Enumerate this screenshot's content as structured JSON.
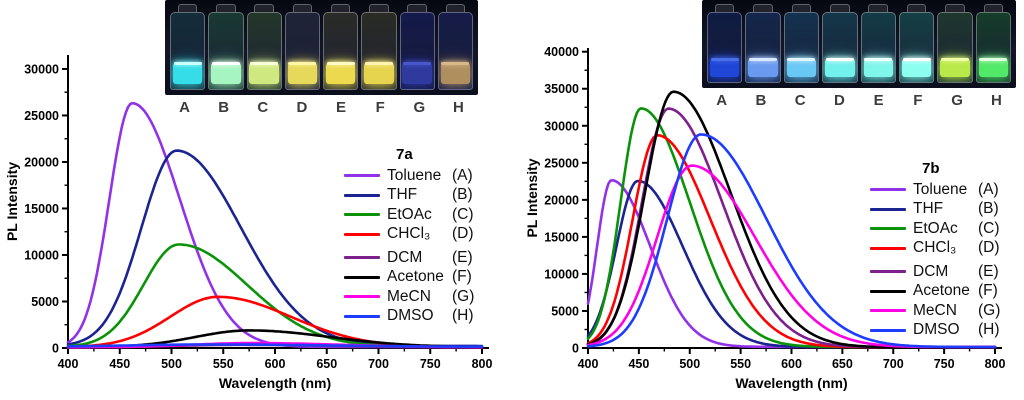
{
  "chart_data": [
    {
      "id": "7a",
      "type": "line",
      "title": "7a",
      "xlabel": "Wavelength (nm)",
      "ylabel": "PL Intensity",
      "xlim": [
        400,
        800
      ],
      "ylim": [
        0,
        31500
      ],
      "xtick_step": 50,
      "xtick_minor_step": 25,
      "ytick_step": 5000,
      "ytick_minor_step": 2500,
      "ytick_max": 30000,
      "grid": false,
      "legend_position": "inside-right",
      "series": [
        {
          "name": "Toluene",
          "letter": "(A)",
          "color": "#9232E8",
          "peak_nm": 462,
          "peak_intensity": 26200,
          "sigma_left": 22,
          "sigma_right": 46,
          "baseline": 120
        },
        {
          "name": "THF",
          "letter": "(B)",
          "color": "#1B2490",
          "peak_nm": 505,
          "peak_intensity": 21000,
          "sigma_left": 34,
          "sigma_right": 62,
          "baseline": 220
        },
        {
          "name": "EtOAc",
          "letter": "(C)",
          "color": "#0A9308",
          "peak_nm": 507,
          "peak_intensity": 11000,
          "sigma_left": 34,
          "sigma_right": 66,
          "baseline": 130
        },
        {
          "name": "CHCl₃",
          "letter": "(D)",
          "color": "#FF0000",
          "peak_nm": 545,
          "peak_intensity": 5400,
          "sigma_left": 46,
          "sigma_right": 70,
          "baseline": 100
        },
        {
          "name": "DCM",
          "letter": "(E)",
          "color": "#7D1F8D",
          "peak_nm": 565,
          "peak_intensity": 280,
          "sigma_left": 60,
          "sigma_right": 85,
          "baseline": 60
        },
        {
          "name": "Acetone",
          "letter": "(F)",
          "color": "#000000",
          "peak_nm": 575,
          "peak_intensity": 1800,
          "sigma_left": 52,
          "sigma_right": 78,
          "baseline": 90
        },
        {
          "name": "MeCN",
          "letter": "(G)",
          "color": "#FF00E6",
          "peak_nm": 578,
          "peak_intensity": 450,
          "sigma_left": 58,
          "sigma_right": 85,
          "baseline": 80
        },
        {
          "name": "DMSO",
          "letter": "(H)",
          "color": "#1E3CFF",
          "peak_nm": 540,
          "peak_intensity": 260,
          "sigma_left": 80,
          "sigma_right": 110,
          "baseline": 120
        }
      ]
    },
    {
      "id": "7b",
      "type": "line",
      "title": "7b",
      "xlabel": "Wavelength (nm)",
      "ylabel": "PL Intensity",
      "xlim": [
        400,
        800
      ],
      "ylim": [
        0,
        40500
      ],
      "xtick_step": 50,
      "xtick_minor_step": 25,
      "ytick_step": 5000,
      "ytick_minor_step": 2500,
      "ytick_max": 40000,
      "grid": false,
      "legend_position": "inside-right",
      "series": [
        {
          "name": "Toluene",
          "letter": "(A)",
          "color": "#9232E8",
          "peak_nm": 423,
          "peak_intensity": 22500,
          "sigma_left": 14,
          "sigma_right": 38,
          "baseline": 150
        },
        {
          "name": "THF",
          "letter": "(B)",
          "color": "#1B2490",
          "peak_nm": 449,
          "peak_intensity": 22400,
          "sigma_left": 21,
          "sigma_right": 44,
          "baseline": 150
        },
        {
          "name": "EtOAc",
          "letter": "(C)",
          "color": "#0A9308",
          "peak_nm": 452,
          "peak_intensity": 32200,
          "sigma_left": 20,
          "sigma_right": 48,
          "baseline": 150
        },
        {
          "name": "CHCl₃",
          "letter": "(D)",
          "color": "#FF0000",
          "peak_nm": 468,
          "peak_intensity": 28600,
          "sigma_left": 24,
          "sigma_right": 52,
          "baseline": 120
        },
        {
          "name": "DCM",
          "letter": "(E)",
          "color": "#7D1F8D",
          "peak_nm": 479,
          "peak_intensity": 32200,
          "sigma_left": 26,
          "sigma_right": 53,
          "baseline": 120
        },
        {
          "name": "Acetone",
          "letter": "(F)",
          "color": "#000000",
          "peak_nm": 484,
          "peak_intensity": 34500,
          "sigma_left": 28,
          "sigma_right": 56,
          "baseline": 100
        },
        {
          "name": "MeCN",
          "letter": "(G)",
          "color": "#FF00E6",
          "peak_nm": 502,
          "peak_intensity": 24500,
          "sigma_left": 34,
          "sigma_right": 62,
          "baseline": 120
        },
        {
          "name": "DMSO",
          "letter": "(H)",
          "color": "#1E3CFF",
          "peak_nm": 511,
          "peak_intensity": 28700,
          "sigma_left": 33,
          "sigma_right": 64,
          "baseline": 130
        }
      ]
    }
  ],
  "photos": [
    {
      "name": "vials-under-uv-7a",
      "vials": [
        {
          "label": "A",
          "glass": "#2a6f80",
          "liquid": "#35dde8",
          "bright": "#c8ffff"
        },
        {
          "label": "B",
          "glass": "#3a8f6a",
          "liquid": "#a6f5c0",
          "bright": "#ffffff"
        },
        {
          "label": "C",
          "glass": "#5a8a55",
          "liquid": "#cfe87f",
          "bright": "#f8ffd8"
        },
        {
          "label": "D",
          "glass": "#4a5578",
          "liquid": "#e5d85a",
          "bright": "#fff6a8"
        },
        {
          "label": "E",
          "glass": "#6a6a4a",
          "liquid": "#ecd94e",
          "bright": "#fffac0"
        },
        {
          "label": "F",
          "glass": "#6a6a45",
          "liquid": "#e6d44f",
          "bright": "#fff3b0"
        },
        {
          "label": "G",
          "glass": "#2a36b0",
          "liquid": "#2e3a9e",
          "bright": "#4a57c8"
        },
        {
          "label": "H",
          "glass": "#2f3ea6",
          "liquid": "#b08f5f",
          "bright": "#d8b888"
        }
      ]
    },
    {
      "name": "vials-under-uv-7b",
      "vials": [
        {
          "label": "A",
          "glass": "#1c3a9a",
          "liquid": "#2046d8",
          "bright": "#4a6fe8"
        },
        {
          "label": "B",
          "glass": "#2a5ab0",
          "liquid": "#6a9af0",
          "bright": "#d8e8ff"
        },
        {
          "label": "C",
          "glass": "#2a7ab8",
          "liquid": "#6ac8f5",
          "bright": "#e0f6ff"
        },
        {
          "label": "D",
          "glass": "#2a8aa8",
          "liquid": "#72f0ec",
          "bright": "#ffffff"
        },
        {
          "label": "E",
          "glass": "#2a95a2",
          "liquid": "#80f5ea",
          "bright": "#eeffff"
        },
        {
          "label": "F",
          "glass": "#2fa29e",
          "liquid": "#8cfff0",
          "bright": "#ffffff"
        },
        {
          "label": "G",
          "glass": "#4a8a5f",
          "liquid": "#b8e84a",
          "bright": "#eeffa8"
        },
        {
          "label": "H",
          "glass": "#2f9a52",
          "liquid": "#52e868",
          "bright": "#e0ffe0"
        }
      ]
    }
  ]
}
